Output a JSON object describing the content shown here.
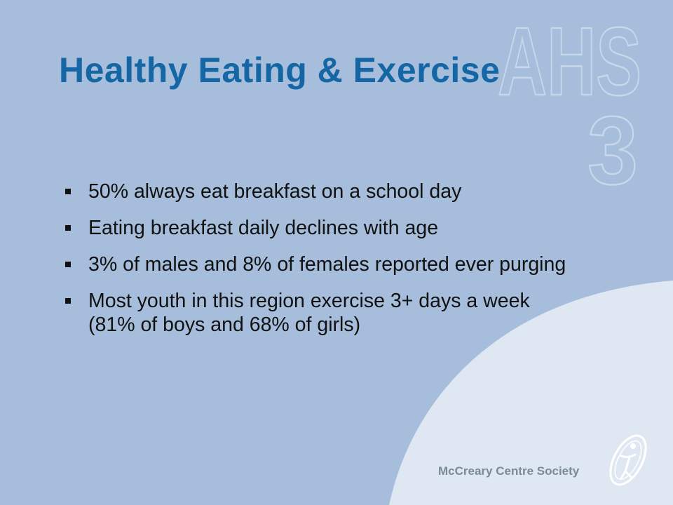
{
  "slide": {
    "title": "Healthy Eating & Exercise",
    "bullets": [
      "50% always eat breakfast on a school day",
      "Eating breakfast daily declines with age",
      "3% of males and 8% of females reported ever purging",
      "Most youth in this region exercise 3+ days a week (81% of boys and 68% of girls)"
    ],
    "footer": "McCreary Centre Society",
    "watermark": {
      "line1": "AHS",
      "line2": "3"
    },
    "colors": {
      "background": "#a6bedb",
      "curve": "#dfe8f2",
      "title": "#1466a4",
      "text": "#111111",
      "footer": "#7a8a99"
    },
    "icons": {
      "logo": "mccreary-figure-logo",
      "bullet": "square-bullet"
    }
  }
}
